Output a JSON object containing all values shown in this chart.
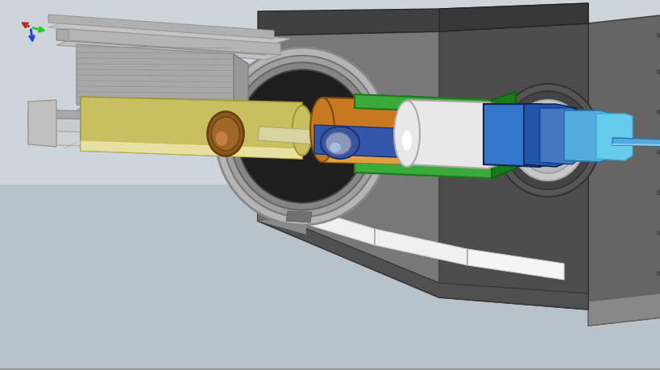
{
  "background_color": "#c2cdd4",
  "figsize": [
    8.2,
    4.6
  ],
  "dpi": 100,
  "colors": {
    "bg": "#c2cdd4",
    "scanner_dark": "#4d4d4d",
    "scanner_mid": "#666666",
    "scanner_front": "#787878",
    "scanner_top_dark": "#595959",
    "scanner_top_light": "#b0b0b0",
    "white_panel": "#e8e8e8",
    "white_panel2": "#f0f0f0",
    "bore_ring_outer": "#a8a8a8",
    "bore_ring_mid": "#888888",
    "bore_dark": "#2a2a2a",
    "bore_inner": "#3d3d3d",
    "right_panel_face": "#606060",
    "right_panel_side": "#525252",
    "table_silver": "#c0c4c8",
    "table_dark": "#9a9ea2",
    "table_side": "#888c90",
    "pedestal_light": "#b0b4b8",
    "pedestal_dark": "#909498",
    "base_light": "#c4c4c4",
    "base_dark": "#a0a0a0",
    "green": "#3aaa3a",
    "green_dark": "#1a7a1a",
    "orange": "#c87820",
    "orange_light": "#e0a040",
    "yellow_cream": "#ddd8a0",
    "yellow_gold": "#c8c060",
    "blue_body": "#2255aa",
    "blue_mid": "#3377cc",
    "blue_light": "#55aadd",
    "blue_cyan": "#66ccee",
    "white_cyl": "#e8e8e8",
    "brown": "#8B5A1A",
    "brown_dark": "#6a4010",
    "patient_blue": "#3355aa",
    "patient_light": "#99aacc",
    "right_side_panel": "#656565",
    "right_side_edge": "#484848"
  }
}
